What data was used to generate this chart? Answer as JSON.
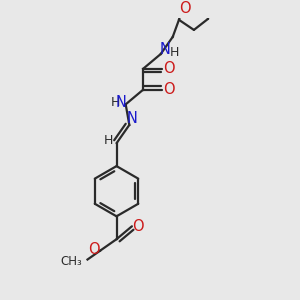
{
  "bg_color": "#e8e8e8",
  "bond_color": "#2a2a2a",
  "nitrogen_color": "#1a1acc",
  "oxygen_color": "#cc1a1a",
  "lw": 1.6,
  "figsize": [
    3.0,
    3.0
  ],
  "dpi": 100,
  "xlim": [
    0,
    10
  ],
  "ylim": [
    0,
    10
  ]
}
